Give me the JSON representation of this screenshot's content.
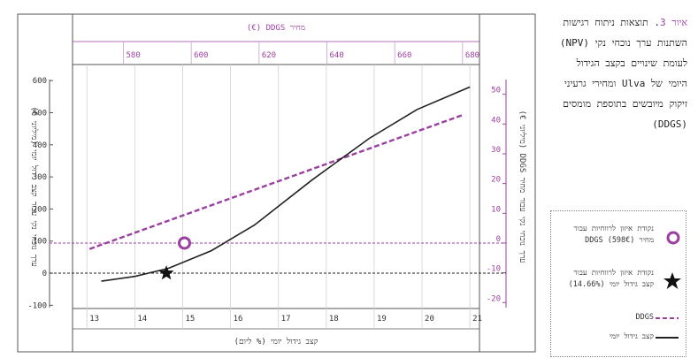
{
  "caption": {
    "fig_label": "איור 3",
    "text": ". תוצאות ניתוח רגישות השתנות ערך נוכחי נקי (NPV) לעומת שינויים בקצב הגידול היומי של Ulva ומחירי גרעיני זיקוק מיובשים בתוספת מומסים (DDGS)"
  },
  "legend": {
    "items": [
      {
        "label": "נקודת איזון לרווחיות עבור מחיר DDGS (598€)",
        "symbol": "circle-icon"
      },
      {
        "label": "נקודת איזון לרווחיות עבור קצב גידול יומי (14.66%)",
        "symbol": "star-icon"
      },
      {
        "label": "DDGS",
        "symbol": "dashed-line-icon"
      },
      {
        "label": "קצב גידול יומי",
        "symbol": "solid-line-icon"
      }
    ]
  },
  "colors": {
    "accent": "#9b3fa1",
    "dark": "#222222",
    "grid": "#d0d0d0"
  },
  "chart_data": {
    "type": "line",
    "top_axis": {
      "label": "מחיר DDGS (€)",
      "ticks": [
        580,
        600,
        620,
        640,
        660,
        680
      ],
      "range": [
        565,
        685
      ]
    },
    "bottom_axis": {
      "label": "קצב גידול יומי (% ליום)",
      "ticks": [
        13,
        14,
        15,
        16,
        17,
        18,
        19,
        20,
        21
      ],
      "range": [
        12.7,
        21.2
      ]
    },
    "left_axis": {
      "label": "ערך נוכחי נקי עבור קצב גידול יומי (מיליוני €)",
      "ticks": [
        600,
        500,
        400,
        300,
        200,
        100,
        0,
        -100
      ],
      "range": [
        -110,
        650
      ]
    },
    "right_axis": {
      "label": "ערך נוכחי נקי עבור מחיר DDGS (מיליוני €)",
      "ticks": [
        50,
        40,
        30,
        20,
        10,
        0,
        -10,
        -20
      ],
      "range": [
        -22,
        60
      ]
    },
    "series": [
      {
        "name": "DDGS",
        "axis": "top-right",
        "style": "dashed",
        "x": [
          570,
          680
        ],
        "y": [
          -2,
          43
        ]
      },
      {
        "name": "קצב גידול יומי",
        "axis": "bottom-left",
        "style": "solid",
        "x": [
          13.3,
          14.0,
          14.7,
          15.6,
          16.5,
          17.7,
          18.9,
          19.9,
          21.0
        ],
        "y": [
          -25,
          -10,
          15,
          70,
          150,
          290,
          420,
          510,
          580
        ]
      }
    ],
    "reference_lines": [
      {
        "axis": "right",
        "value": 0,
        "style": "dashed",
        "color": "accent"
      },
      {
        "axis": "left",
        "value": 0,
        "style": "dashed",
        "color": "dark"
      }
    ],
    "markers": [
      {
        "name": "break-even DDGS",
        "axis": "top-right",
        "x": 598,
        "y": 0,
        "symbol": "circle"
      },
      {
        "name": "break-even growth",
        "axis": "bottom-left",
        "x": 14.66,
        "y": 0,
        "symbol": "star"
      }
    ],
    "grid": true
  }
}
